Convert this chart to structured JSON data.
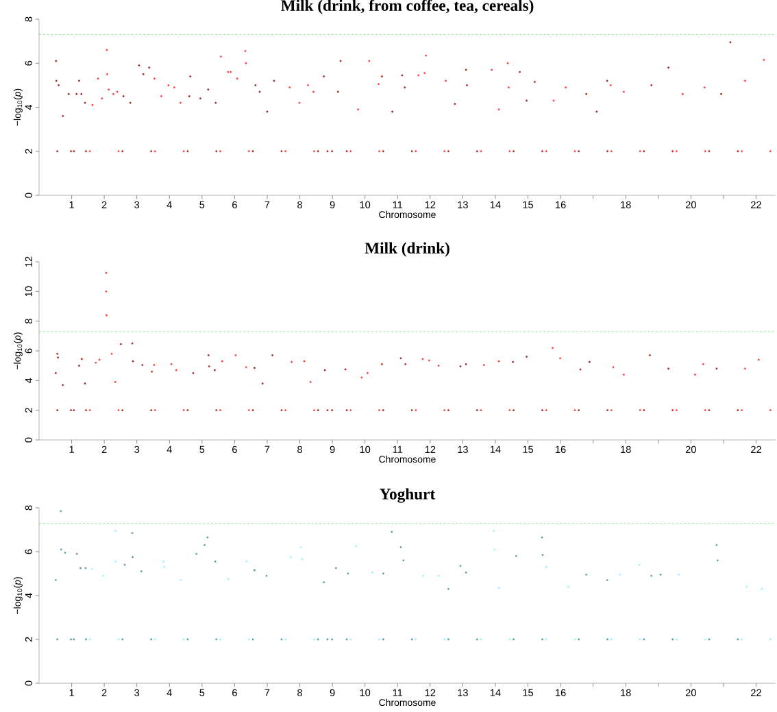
{
  "chart_data": [
    {
      "type": "scatter",
      "title": "Milk (drink, from coffee, tea, cereals)",
      "xlabel": "Chromosome",
      "ylabel": "−log$_{10}$(*p*)",
      "marker": "circle",
      "xlim": [
        0,
        22.6
      ],
      "ylim": [
        0,
        8
      ],
      "yticks": [
        0,
        2,
        4,
        6,
        8
      ],
      "xticks": [
        1,
        2,
        3,
        4,
        5,
        6,
        7,
        8,
        9,
        10,
        11,
        12,
        13,
        14,
        15,
        16,
        {
          "value": 17,
          "label": null
        },
        18,
        {
          "value": 19,
          "label": null
        },
        20,
        {
          "value": 21,
          "label": null
        },
        22
      ],
      "ref_lines": [
        {
          "axis": "y",
          "value": 7.3,
          "color": "#90ee90",
          "line_style": "dashed"
        }
      ],
      "series": [
        {
          "color": "#a52a2a",
          "x": [
            0.56,
            0.52,
            0.53,
            0.6,
            0.73,
            0.91,
            0.98,
            1.07,
            1.15,
            1.23,
            1.3,
            1.41,
            1.44,
            2.56,
            2.59,
            2.8,
            3.07,
            3.2,
            3.38,
            3.44,
            4.56,
            4.61,
            4.64,
            4.95,
            5.19,
            5.42,
            5.44,
            6.56,
            6.64,
            6.77,
            7.0,
            7.21,
            7.44,
            8.56,
            8.74,
            8.85,
            8.99,
            9.17,
            9.25,
            9.44,
            10.56,
            10.52,
            10.84,
            11.14,
            11.22,
            11.44,
            12.56,
            12.76,
            13.1,
            13.13,
            13.44,
            14.56,
            14.75,
            14.96,
            15.21,
            15.44,
            16.56,
            16.79,
            17.11,
            17.43,
            17.44,
            18.56,
            18.79,
            19.31,
            19.44,
            20.56,
            20.93,
            21.21,
            21.44
          ],
          "values": [
            2,
            6.1,
            5.2,
            5.0,
            3.6,
            4.6,
            2,
            2,
            4.6,
            5.2,
            4.6,
            4.2,
            2,
            2,
            4.5,
            4.2,
            5.9,
            5.5,
            5.8,
            2,
            2,
            4.5,
            5.4,
            4.4,
            4.8,
            4.2,
            2,
            2,
            5.0,
            4.7,
            3.8,
            5.2,
            2,
            2,
            5.4,
            2,
            2,
            4.7,
            6.1,
            2,
            2,
            5.4,
            3.8,
            5.45,
            4.9,
            2,
            2,
            4.15,
            5.7,
            5.0,
            2,
            2,
            5.6,
            4.3,
            5.15,
            2,
            2,
            4.6,
            3.8,
            5.2,
            2,
            2,
            5.0,
            5.8,
            2,
            2,
            4.6,
            6.95,
            2
          ]
        },
        {
          "color": "#ff4040",
          "x": [
            1.56,
            1.64,
            1.81,
            1.93,
            2.08,
            2.09,
            2.14,
            2.28,
            2.4,
            2.44,
            3.56,
            3.54,
            3.75,
            3.97,
            4.15,
            4.34,
            4.44,
            5.56,
            5.58,
            5.8,
            5.88,
            6.08,
            6.33,
            6.35,
            6.44,
            7.56,
            7.69,
            7.99,
            8.25,
            8.42,
            8.44,
            9.56,
            9.79,
            10.13,
            10.42,
            10.44,
            11.56,
            11.64,
            11.83,
            11.87,
            12.48,
            12.44,
            13.56,
            13.89,
            14.11,
            14.38,
            14.41,
            14.44,
            15.56,
            15.79,
            16.16,
            16.44,
            17.56,
            17.54,
            17.94,
            18.44,
            19.56,
            19.75,
            20.42,
            20.44,
            21.56,
            21.66,
            22.24,
            22.44
          ],
          "values": [
            2,
            4.1,
            5.3,
            4.4,
            6.6,
            5.5,
            4.8,
            4.6,
            4.7,
            2,
            2,
            5.3,
            4.5,
            5.0,
            4.9,
            4.2,
            2,
            2,
            6.3,
            5.6,
            5.6,
            5.3,
            6.55,
            6.0,
            2,
            2,
            4.9,
            4.2,
            5.0,
            4.7,
            2,
            2,
            3.9,
            6.1,
            5.05,
            2,
            2,
            5.45,
            5.55,
            6.35,
            5.2,
            2,
            2,
            5.7,
            3.9,
            6.0,
            4.9,
            2,
            2,
            4.3,
            4.9,
            2,
            2,
            5.0,
            4.7,
            2,
            2,
            4.6,
            4.9,
            2,
            2,
            5.2,
            6.15,
            2
          ]
        }
      ]
    },
    {
      "type": "scatter",
      "title": "Milk (drink)",
      "xlabel": "Chromosome",
      "ylabel": "−log$_{10}$(*p*)",
      "marker": "circle",
      "xlim": [
        0,
        22.6
      ],
      "ylim": [
        0,
        12
      ],
      "yticks": [
        0,
        2,
        4,
        6,
        8,
        10,
        12
      ],
      "xticks": [
        1,
        2,
        3,
        4,
        5,
        6,
        7,
        8,
        9,
        10,
        11,
        12,
        13,
        14,
        15,
        16,
        {
          "value": 17,
          "label": null
        },
        18,
        {
          "value": 19,
          "label": null
        },
        20,
        {
          "value": 21,
          "label": null
        },
        22
      ],
      "ref_lines": [
        {
          "axis": "y",
          "value": 7.3,
          "color": "#90ee90",
          "line_style": "dashed"
        }
      ],
      "series": [
        {
          "color": "#a52a2a",
          "x": [
            0.56,
            0.51,
            0.56,
            0.58,
            0.73,
            0.98,
            1.07,
            1.23,
            1.31,
            1.41,
            1.44,
            2.56,
            2.51,
            2.86,
            2.88,
            3.17,
            3.46,
            3.44,
            4.56,
            4.73,
            5.2,
            5.22,
            5.39,
            5.44,
            6.56,
            6.61,
            6.86,
            7.16,
            7.44,
            8.56,
            8.77,
            8.85,
            8.99,
            9.4,
            9.44,
            10.56,
            10.52,
            11.1,
            11.24,
            11.44,
            12.56,
            12.93,
            13.1,
            13.44,
            14.56,
            14.54,
            14.96,
            15.44,
            16.56,
            16.61,
            16.89,
            17.44,
            18.56,
            18.74,
            19.31,
            19.44,
            20.56,
            20.79,
            21.44
          ],
          "values": [
            2,
            4.5,
            5.8,
            5.55,
            3.7,
            2,
            2,
            5.0,
            5.45,
            3.8,
            2,
            2,
            6.45,
            6.5,
            5.3,
            5.05,
            4.6,
            2,
            2,
            4.5,
            5.7,
            4.95,
            4.7,
            2,
            2,
            4.85,
            3.8,
            5.7,
            2,
            2,
            4.7,
            2,
            2,
            4.75,
            2,
            2,
            5.1,
            5.5,
            5.1,
            2,
            2,
            4.95,
            5.1,
            2,
            2,
            5.25,
            5.6,
            2,
            2,
            4.75,
            5.25,
            2,
            2,
            5.7,
            4.8,
            2,
            2,
            4.8,
            2
          ]
        },
        {
          "color": "#ff4040",
          "x": [
            1.56,
            1.74,
            1.85,
            2.06,
            2.06,
            2.07,
            2.23,
            2.34,
            2.44,
            3.56,
            3.53,
            4.06,
            4.21,
            4.44,
            5.56,
            5.62,
            6.03,
            6.35,
            6.44,
            7.56,
            7.75,
            8.14,
            8.33,
            8.44,
            9.56,
            9.9,
            10.08,
            10.44,
            11.56,
            11.77,
            11.97,
            12.26,
            12.44,
            13.56,
            13.65,
            14.11,
            14.44,
            15.56,
            15.76,
            15.99,
            16.44,
            17.56,
            17.62,
            17.94,
            18.44,
            19.56,
            20.13,
            20.38,
            20.44,
            21.56,
            21.66,
            22.08,
            22.44
          ],
          "values": [
            2,
            5.2,
            5.4,
            11.25,
            10.0,
            8.4,
            5.8,
            3.9,
            2,
            2,
            5.05,
            5.1,
            4.7,
            2,
            2,
            5.3,
            5.7,
            4.9,
            2,
            2,
            5.25,
            5.3,
            3.9,
            2,
            2,
            4.2,
            4.5,
            2,
            2,
            5.45,
            5.35,
            5.0,
            2,
            2,
            5.05,
            5.3,
            2,
            2,
            6.2,
            5.5,
            2,
            2,
            4.9,
            4.4,
            2,
            2,
            4.4,
            5.1,
            2,
            2,
            4.8,
            5.4,
            2
          ]
        }
      ]
    },
    {
      "type": "scatter",
      "title": "Yoghurt",
      "xlabel": "Chromosome",
      "ylabel": "−log$_{10}$(*p*)",
      "marker": "circle",
      "xlim": [
        0,
        22.6
      ],
      "ylim": [
        0,
        8
      ],
      "yticks": [
        0,
        2,
        4,
        6,
        8
      ],
      "xticks": [
        1,
        2,
        3,
        4,
        5,
        6,
        7,
        8,
        9,
        10,
        11,
        12,
        13,
        14,
        15,
        16,
        {
          "value": 17,
          "label": null
        },
        18,
        {
          "value": 19,
          "label": null
        },
        20,
        {
          "value": 21,
          "label": null
        },
        22
      ],
      "ref_lines": [
        {
          "axis": "y",
          "value": 7.3,
          "color": "#90ee90",
          "line_style": "dashed"
        }
      ],
      "series": [
        {
          "color": "#5f9ea0",
          "x": [
            0.56,
            0.51,
            0.67,
            0.68,
            0.8,
            0.98,
            1.07,
            1.16,
            1.27,
            1.43,
            1.44,
            2.56,
            2.63,
            2.86,
            2.87,
            3.14,
            3.44,
            4.56,
            4.83,
            5.08,
            5.17,
            5.41,
            5.44,
            6.56,
            6.61,
            6.98,
            7.44,
            8.56,
            8.74,
            8.85,
            8.99,
            9.11,
            9.48,
            9.44,
            10.56,
            10.56,
            10.82,
            11.1,
            11.18,
            11.44,
            12.56,
            12.56,
            12.93,
            13.1,
            13.44,
            14.56,
            14.64,
            15.43,
            15.45,
            15.44,
            16.56,
            16.79,
            17.43,
            17.44,
            18.56,
            18.79,
            19.07,
            19.44,
            20.56,
            20.79,
            20.82,
            21.44
          ],
          "values": [
            2,
            4.7,
            7.85,
            6.1,
            5.95,
            2,
            2,
            5.9,
            5.25,
            5.25,
            2,
            2,
            5.4,
            6.85,
            5.75,
            5.1,
            2,
            2,
            5.9,
            6.3,
            6.65,
            5.55,
            2,
            2,
            5.15,
            4.9,
            2,
            2,
            4.6,
            2,
            2,
            5.25,
            5.0,
            2,
            2,
            5.0,
            6.9,
            6.2,
            5.6,
            2,
            2,
            4.3,
            5.35,
            5.05,
            2,
            2,
            5.8,
            6.65,
            5.85,
            2,
            2,
            4.95,
            4.7,
            2,
            2,
            4.9,
            4.95,
            2,
            2,
            6.3,
            5.6,
            2
          ]
        },
        {
          "color": "#98f5ff",
          "x": [
            1.56,
            1.63,
            1.97,
            2.35,
            2.35,
            2.44,
            3.56,
            3.82,
            3.84,
            4.35,
            4.44,
            5.56,
            5.8,
            6.37,
            6.44,
            7.56,
            7.72,
            8.03,
            8.08,
            8.44,
            9.56,
            9.73,
            10.23,
            10.44,
            11.56,
            11.79,
            12.26,
            12.44,
            13.56,
            13.95,
            13.97,
            14.11,
            14.44,
            15.56,
            15.56,
            16.24,
            16.44,
            17.56,
            17.82,
            18.42,
            18.44,
            19.56,
            19.63,
            20.44,
            21.56,
            21.71,
            22.18,
            22.44
          ],
          "values": [
            2,
            5.2,
            4.9,
            6.95,
            5.55,
            2,
            2,
            5.55,
            5.3,
            4.7,
            2,
            2,
            4.75,
            5.55,
            2,
            2,
            5.75,
            6.2,
            5.65,
            2,
            2,
            6.25,
            5.05,
            2,
            2,
            4.9,
            4.9,
            2,
            2,
            6.95,
            6.1,
            4.35,
            2,
            2,
            5.3,
            4.4,
            2,
            2,
            4.95,
            5.4,
            2,
            2,
            4.95,
            2,
            2,
            4.4,
            4.3,
            2
          ]
        }
      ]
    }
  ]
}
